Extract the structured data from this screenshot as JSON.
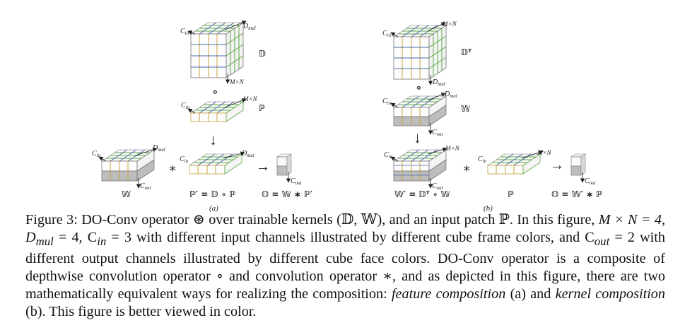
{
  "panel_a": {
    "tensor_D": "𝔻",
    "tensor_P": "ℙ",
    "tensor_W": "𝕎",
    "eq_P_prime": "ℙ′ = 𝔻 ∘ ℙ",
    "eq_O": "𝕆 = 𝕎 ∗ ℙ′",
    "sublabel": "(a)"
  },
  "panel_b": {
    "tensor_DT": "𝔻ᵀ",
    "tensor_W": "𝕎",
    "tensor_P": "ℙ",
    "eq_W_prime": "𝕎′ = 𝔻ᵀ ∘ 𝕎",
    "eq_P": "ℙ",
    "eq_O": "𝕆 = 𝕎′ ∗ ℙ",
    "sublabel": "(b)"
  },
  "dim_labels": {
    "c_in": "Cin",
    "d_mul": "Dmul",
    "c_out": "Cout",
    "mxn": "M×N"
  },
  "operators": {
    "compose": "∘",
    "conv": "∗",
    "arrow_down": "↓",
    "arrow_right": "→"
  },
  "caption": {
    "s1": "Figure 3: DO-Conv operator ⊛ over trainable kernels (𝔻, 𝕎), and an input patch ℙ. In this figure,",
    "s2": "M × N = 4, D",
    "s2_sub": "mul",
    "s3": " = 4, C",
    "s3_sub": "in",
    "s4": " = 3 with different input channels illustrated by different cube frame",
    "s5": "colors, and C",
    "s5_sub": "out",
    "s6": " = 2 with different output channels illustrated by different cube face colors. DO-Conv operator is a composite of depthwise convolution operator ∘ and convolution operator ∗, and as depicted in this figure, there are two mathematically equivalent ways for realizing the composition: ",
    "feat_comp": "feature composition",
    "s7": " (a) and ",
    "kern_comp": "kernel composition",
    "s8": " (b). This figure is better viewed in color."
  },
  "colors": {
    "channel_1": "#c8a23a",
    "channel_2": "#4a68b0",
    "channel_3": "#5aa844",
    "grid": "#555555",
    "face_gray": "#bdbdbd"
  }
}
